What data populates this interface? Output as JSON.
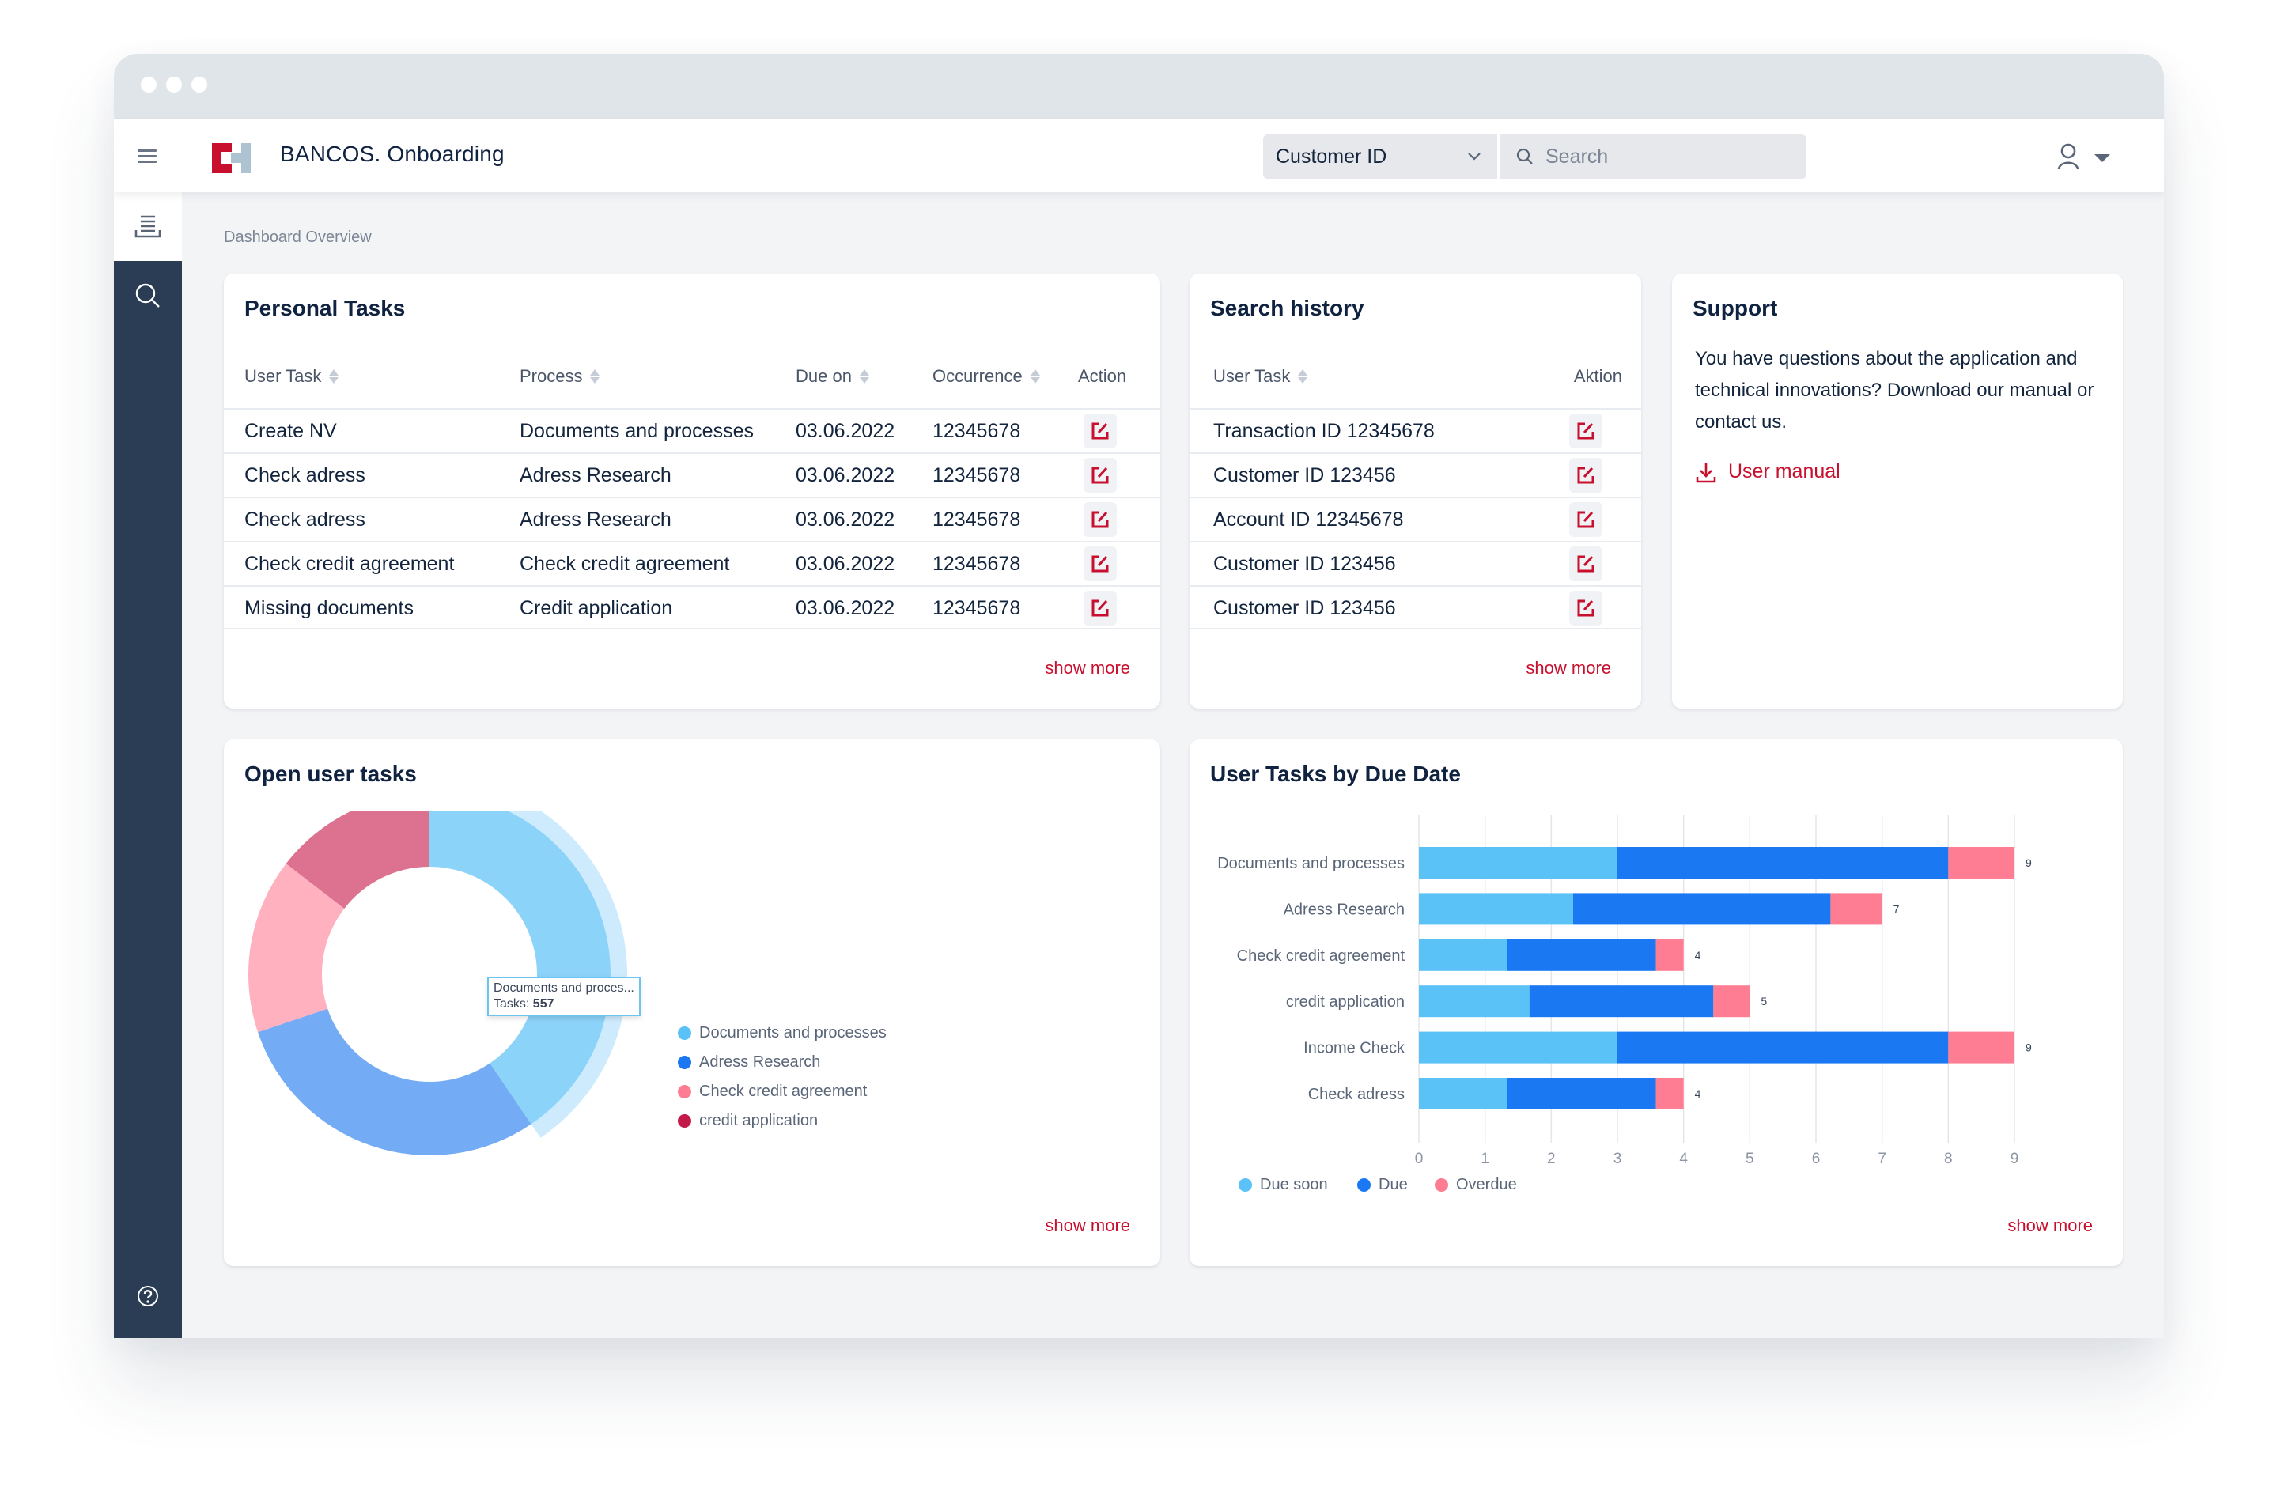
{
  "app": {
    "title": "BANCOS. Onboarding",
    "search_type": "Customer ID",
    "search_placeholder": "Search",
    "breadcrumb": "Dashboard Overview"
  },
  "icons": {
    "menu": "hamburger-icon",
    "logo": "bancos-logo",
    "chevron": "chevron-down-icon",
    "search": "search-icon",
    "user": "user-icon",
    "caret": "caret-down-icon",
    "sidebar_list": "list-icon",
    "sidebar_search": "search-icon",
    "sidebar_help": "help-icon",
    "edit": "edit-icon",
    "download": "download-icon"
  },
  "colors": {
    "accent": "#c8102e",
    "sidebar": "#2b3d55",
    "due_soon": "#5bc2f7",
    "due": "#1a78f2",
    "overdue": "#ff7d93",
    "credit_application": "#c41a4a"
  },
  "personal_tasks": {
    "title": "Personal Tasks",
    "columns": [
      "User Task",
      "Process",
      "Due on",
      "Occurrence",
      "Action"
    ],
    "rows": [
      [
        "Create NV",
        "Documents and processes",
        "03.06.2022",
        "12345678"
      ],
      [
        "Check adress",
        "Adress Research",
        "03.06.2022",
        "12345678"
      ],
      [
        "Check adress",
        "Adress Research",
        "03.06.2022",
        "12345678"
      ],
      [
        "Check credit agreement",
        "Check credit agreement",
        "03.06.2022",
        "12345678"
      ],
      [
        "Missing documents",
        "Credit application",
        "03.06.2022",
        "12345678"
      ]
    ],
    "show_more": "show more"
  },
  "search_history": {
    "title": "Search history",
    "columns": [
      "User Task",
      "Aktion"
    ],
    "rows": [
      "Transaction ID 12345678",
      "Customer ID 123456",
      "Account ID 12345678",
      "Customer ID 123456",
      "Customer ID 123456"
    ],
    "show_more": "show more"
  },
  "support": {
    "title": "Support",
    "text": "You have questions about the application and technical innovations? Download our manual or contact us.",
    "link": "User manual"
  },
  "open_tasks": {
    "title": "Open user tasks",
    "show_more": "show more",
    "tooltip_label": "Documents and proces...",
    "tooltip_prefix": "Tasks: ",
    "tooltip_value": "557"
  },
  "due_date": {
    "title": "User Tasks by Due Date",
    "show_more": "show more"
  },
  "chart_data": [
    {
      "type": "pie",
      "title": "Open user tasks",
      "donut": true,
      "categories": [
        "Documents and processes",
        "Adress Research",
        "Check credit agreement",
        "credit application"
      ],
      "values": [
        557,
        403,
        215,
        200
      ],
      "colors": [
        "#8cd3f9",
        "#74abf5",
        "#ffb1c0",
        "#dc7290"
      ],
      "legend_colors": [
        "#5bc2f7",
        "#1a78f2",
        "#ff7d93",
        "#c41a4a"
      ],
      "highlighted": 0,
      "legend": "right"
    },
    {
      "type": "bar",
      "orientation": "horizontal",
      "stacked": true,
      "title": "User Tasks by Due Date",
      "categories": [
        "Documents and processes",
        "Adress Research",
        "Check credit agreement",
        "credit application",
        "Income Check",
        "Check adress"
      ],
      "series": [
        {
          "name": "Due soon",
          "color": "#5bc2f7",
          "values": [
            3,
            2.33,
            1.33,
            1.67,
            3,
            1.33
          ]
        },
        {
          "name": "Due",
          "color": "#1a78f2",
          "values": [
            5,
            3.89,
            2.25,
            2.78,
            5,
            2.25
          ]
        },
        {
          "name": "Overdue",
          "color": "#ff7d93",
          "values": [
            1,
            0.78,
            0.42,
            0.55,
            1,
            0.42
          ]
        }
      ],
      "totals": [
        9,
        7,
        4,
        5,
        9,
        4
      ],
      "xticks": [
        0,
        1,
        2,
        3,
        4,
        5,
        6,
        7,
        8,
        9
      ],
      "xlim": [
        0,
        9
      ],
      "grid": true,
      "legend": "bottom-left"
    }
  ]
}
